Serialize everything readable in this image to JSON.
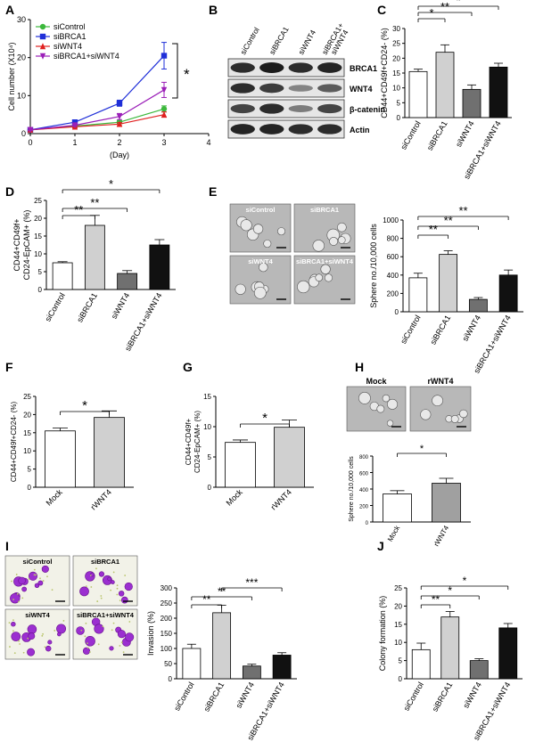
{
  "panel_letters": [
    "A",
    "B",
    "C",
    "D",
    "E",
    "F",
    "G",
    "H",
    "I",
    "J"
  ],
  "colors": {
    "white": "#ffffff",
    "light_gray": "#d0d0d0",
    "dark_gray": "#707070",
    "black": "#111111",
    "green": "#3cb83c",
    "blue": "#1f2fd8",
    "red": "#e02020",
    "purple": "#9b1fb8",
    "blot_bg": "#e6e6e6",
    "micro_bg": "#bdbdbd"
  },
  "panel_B": {
    "lanes": [
      "siControl",
      "siBRCA1",
      "siWNT4",
      "siBRCA1+ siWNT4"
    ],
    "bands": [
      "BRCA1",
      "WNT4",
      "β-catenin",
      "Actin"
    ],
    "intensities": [
      [
        0.85,
        0.95,
        0.85,
        0.9
      ],
      [
        0.85,
        0.75,
        0.3,
        0.55
      ],
      [
        0.7,
        0.85,
        0.35,
        0.7
      ],
      [
        0.9,
        0.9,
        0.85,
        0.85
      ]
    ]
  },
  "panel_E": {
    "images": [
      "siControl",
      "siBRCA1",
      "siWNT4",
      "siBRCA1+siWNT4"
    ]
  },
  "panel_H": {
    "images": [
      "Mock",
      "rWNT4"
    ]
  },
  "panel_I": {
    "images": [
      "siControl",
      "siBRCA1",
      "siWNT4",
      "siBRCA1+siWNT4"
    ]
  },
  "chart_data": [
    {
      "id": "A",
      "type": "line",
      "xlabel": "(Day)",
      "ylabel": "Cell number (X10⁴)",
      "xlim": [
        0,
        4
      ],
      "ylim": [
        0,
        30
      ],
      "xticks": [
        0,
        1,
        2,
        3,
        4
      ],
      "yticks": [
        0,
        10,
        20,
        30
      ],
      "x": [
        0,
        1,
        2,
        3
      ],
      "series": [
        {
          "name": "siControl",
          "color": "#3cb83c",
          "marker": "circle",
          "values": [
            1,
            2,
            3,
            6.5
          ],
          "errors": [
            0.2,
            0.3,
            0.4,
            0.8
          ]
        },
        {
          "name": "siBRCA1",
          "color": "#1f2fd8",
          "marker": "square",
          "values": [
            1,
            3,
            8,
            20.5
          ],
          "errors": [
            0.2,
            0.4,
            0.8,
            3.5
          ]
        },
        {
          "name": "siWNT4",
          "color": "#e02020",
          "marker": "triangle",
          "values": [
            1,
            1.8,
            2.5,
            5
          ],
          "errors": [
            0.2,
            0.3,
            0.4,
            0.7
          ]
        },
        {
          "name": "siBRCA1+siWNT4",
          "color": "#9b1fb8",
          "marker": "triangle-down",
          "values": [
            1,
            2.2,
            4.5,
            11.5
          ],
          "errors": [
            0.2,
            0.3,
            0.8,
            2
          ]
        }
      ],
      "significance": "*",
      "legend": "top-left"
    },
    {
      "id": "C",
      "type": "bar",
      "ylabel": "CD44+CD49f+CD24- (%)",
      "ylim": [
        0,
        30
      ],
      "yticks": [
        0,
        5,
        10,
        15,
        20,
        25,
        30
      ],
      "categories": [
        "siControl",
        "siBRCA1",
        "siWNT4",
        "siBRCA1+siWNT4"
      ],
      "values": [
        15.5,
        22,
        9.5,
        17
      ],
      "errors": [
        0.8,
        2.5,
        1.5,
        1.3
      ],
      "fills": [
        "#ffffff",
        "#d0d0d0",
        "#707070",
        "#111111"
      ],
      "brackets": [
        {
          "from": 0,
          "to": 1,
          "label": "*"
        },
        {
          "from": 0,
          "to": 2,
          "label": "**"
        },
        {
          "from": 0,
          "to": 3,
          "label": "*"
        }
      ]
    },
    {
      "id": "D",
      "type": "bar",
      "ylabel": "CD44+CD49f+ CD24-EpCAM+ (%)",
      "ylim": [
        0,
        25
      ],
      "yticks": [
        0,
        5,
        10,
        15,
        20,
        25
      ],
      "categories": [
        "siControl",
        "siBRCA1",
        "siWNT4",
        "siBRCA1+siWNT4"
      ],
      "values": [
        7.5,
        18,
        4.5,
        12.5
      ],
      "errors": [
        0.3,
        2.8,
        0.8,
        1.5
      ],
      "fills": [
        "#ffffff",
        "#d0d0d0",
        "#707070",
        "#111111"
      ],
      "brackets": [
        {
          "from": 0,
          "to": 1,
          "label": "**"
        },
        {
          "from": 0,
          "to": 2,
          "label": "**"
        },
        {
          "from": 0,
          "to": 3,
          "label": "*"
        }
      ]
    },
    {
      "id": "E",
      "type": "bar",
      "ylabel": "Sphere no./10,000 cells",
      "ylim": [
        0,
        1000
      ],
      "yticks": [
        0,
        200,
        400,
        600,
        800,
        1000
      ],
      "categories": [
        "siControl",
        "siBRCA1",
        "siWNT4",
        "siBRCA1+siWNT4"
      ],
      "values": [
        370,
        625,
        135,
        400
      ],
      "errors": [
        50,
        40,
        20,
        55
      ],
      "fills": [
        "#ffffff",
        "#d0d0d0",
        "#707070",
        "#111111"
      ],
      "brackets": [
        {
          "from": 0,
          "to": 1,
          "label": "**"
        },
        {
          "from": 0,
          "to": 2,
          "label": "**"
        },
        {
          "from": 0,
          "to": 3,
          "label": "**"
        }
      ]
    },
    {
      "id": "F",
      "type": "bar",
      "ylabel": "CD44+CD49f+CD24- (%)",
      "ylim": [
        0,
        25
      ],
      "yticks": [
        0,
        5,
        10,
        15,
        20,
        25
      ],
      "categories": [
        "Mock",
        "rWNT4"
      ],
      "values": [
        15.5,
        19.2
      ],
      "errors": [
        0.8,
        1.8
      ],
      "fills": [
        "#ffffff",
        "#d0d0d0"
      ],
      "brackets": [
        {
          "from": 0,
          "to": 1,
          "label": "*"
        }
      ]
    },
    {
      "id": "G",
      "type": "bar",
      "ylabel": "CD44+CD49f+ CD24-EpCAM+ (%)",
      "ylim": [
        0,
        15
      ],
      "yticks": [
        0,
        5,
        10,
        15
      ],
      "categories": [
        "Mock",
        "rWNT4"
      ],
      "values": [
        7.4,
        9.9
      ],
      "errors": [
        0.4,
        1.2
      ],
      "fills": [
        "#ffffff",
        "#d0d0d0"
      ],
      "brackets": [
        {
          "from": 0,
          "to": 1,
          "label": "*"
        }
      ]
    },
    {
      "id": "H",
      "type": "bar",
      "ylabel": "Sphere no./10,000 cells",
      "ylim": [
        0,
        800
      ],
      "yticks": [
        0,
        200,
        400,
        600,
        800
      ],
      "categories": [
        "Mock",
        "rWNT4"
      ],
      "values": [
        340,
        470
      ],
      "errors": [
        40,
        60
      ],
      "fills": [
        "#ffffff",
        "#a0a0a0"
      ],
      "brackets": [
        {
          "from": 0,
          "to": 1,
          "label": "*"
        }
      ]
    },
    {
      "id": "I",
      "type": "bar",
      "ylabel": "Invasion (%)",
      "ylim": [
        0,
        300
      ],
      "yticks": [
        0,
        50,
        100,
        150,
        200,
        250,
        300
      ],
      "categories": [
        "siControl",
        "siBRCA1",
        "siWNT4",
        "siBRCA1+siWNT4"
      ],
      "values": [
        100,
        218,
        42,
        78
      ],
      "errors": [
        14,
        25,
        6,
        8
      ],
      "fills": [
        "#ffffff",
        "#d0d0d0",
        "#707070",
        "#111111"
      ],
      "brackets": [
        {
          "from": 0,
          "to": 1,
          "label": "**"
        },
        {
          "from": 0,
          "to": 2,
          "label": "**"
        },
        {
          "from": 1,
          "to": 3,
          "label": "***"
        }
      ]
    },
    {
      "id": "J",
      "type": "bar",
      "ylabel": "Colony formation (%)",
      "ylim": [
        0,
        25
      ],
      "yticks": [
        0,
        5,
        10,
        15,
        20,
        25
      ],
      "categories": [
        "siControl",
        "siBRCA1",
        "siWNT4",
        "siBRCA1+siWNT4"
      ],
      "values": [
        8,
        17,
        5,
        14
      ],
      "errors": [
        1.8,
        1.5,
        0.5,
        1.2
      ],
      "fills": [
        "#ffffff",
        "#d0d0d0",
        "#707070",
        "#111111"
      ],
      "brackets": [
        {
          "from": 0,
          "to": 1,
          "label": "**"
        },
        {
          "from": 0,
          "to": 2,
          "label": "*"
        },
        {
          "from": 0,
          "to": 3,
          "label": "*"
        }
      ]
    }
  ]
}
